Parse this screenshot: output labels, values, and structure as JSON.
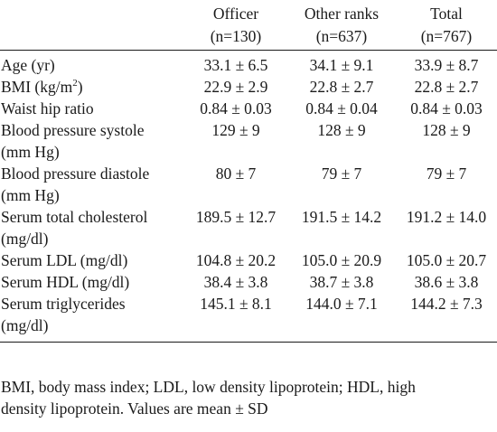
{
  "header": {
    "col0": "",
    "officer_label": "Officer",
    "officer_n": "(n=130)",
    "other_label": "Other ranks",
    "other_n": "(n=637)",
    "total_label": "Total",
    "total_n": "(n=767)"
  },
  "rows": [
    {
      "label": "Age (yr)",
      "officer": "33.1 ± 6.5",
      "other": "34.1 ± 9.1",
      "total": "33.9 ±  8.7"
    },
    {
      "label_pre": "BMI (kg/m",
      "label_sup": "2",
      "label_post": ")",
      "officer": "22.9 ± 2.9",
      "other": "22.8 ± 2.7",
      "total": "22.8 ± 2.7"
    },
    {
      "label": "Waist hip ratio",
      "officer": "0.84 ± 0.03",
      "other": "0.84 ± 0.04",
      "total": "0.84 ± 0.03"
    },
    {
      "label": "Blood pressure systole",
      "label2": "(mm Hg)",
      "officer": "129 ± 9",
      "other": "128 ± 9",
      "total": "128 ± 9"
    },
    {
      "label": "Blood pressure diastole",
      "label2": "(mm Hg)",
      "officer": "80 ± 7",
      "other": "79 ± 7",
      "total": "79 ± 7"
    },
    {
      "label": "Serum total cholesterol",
      "label2": "(mg/dl)",
      "officer": "189.5 ± 12.7",
      "other": "191.5 ± 14.2",
      "total": "191.2 ± 14.0"
    },
    {
      "label": "Serum LDL (mg/dl)",
      "officer": "104.8 ± 20.2",
      "other": "105.0 ± 20.9",
      "total": "105.0 ± 20.7"
    },
    {
      "label": "Serum HDL (mg/dl)",
      "officer": "38.4 ± 3.8",
      "other": "38.7 ± 3.8",
      "total": "38.6 ± 3.8"
    },
    {
      "label": "Serum triglycerides",
      "label2": "(mg/dl)",
      "officer": "145.1 ± 8.1",
      "other": "144.0 ± 7.1",
      "total": "144.2 ± 7.3"
    }
  ],
  "footnote": {
    "line1": "BMI, body mass index; LDL, low density lipoprotein; HDL, high",
    "line2": "density lipoprotein. Values are mean ± SD"
  }
}
